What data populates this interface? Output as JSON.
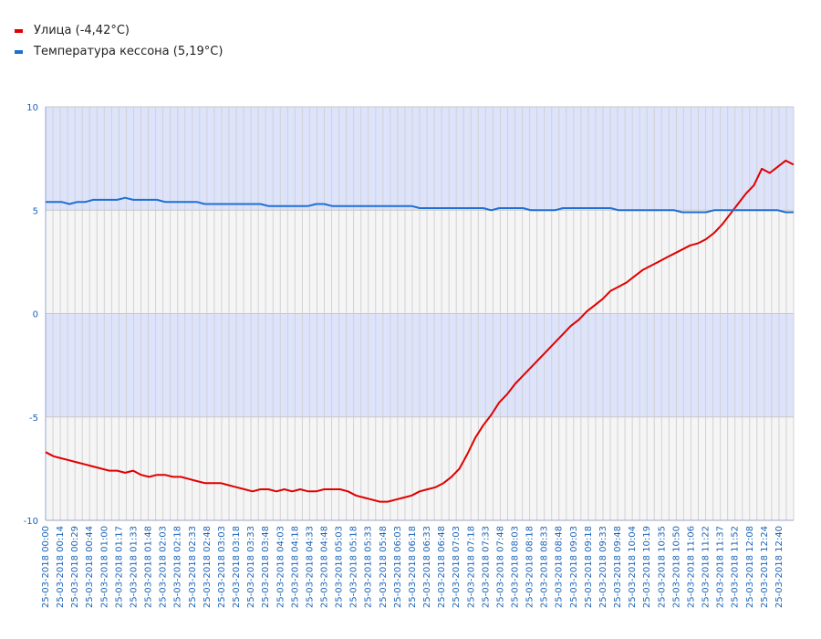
{
  "chart_data": {
    "type": "line",
    "title": "",
    "xlabel": "",
    "ylabel": "",
    "ylim": [
      -10,
      10
    ],
    "yticks": [
      10,
      5,
      0,
      -5,
      -10
    ],
    "band_colors": {
      "blue": "#dce3fb",
      "gray": "#f5f5f5"
    },
    "x_ticks": [
      "25-03-2018 00:00",
      "25-03-2018 00:14",
      "25-03-2018 00:29",
      "25-03-2018 00:44",
      "25-03-2018 01:00",
      "25-03-2018 01:17",
      "25-03-2018 01:33",
      "25-03-2018 01:48",
      "25-03-2018 02:03",
      "25-03-2018 02:18",
      "25-03-2018 02:33",
      "25-03-2018 02:48",
      "25-03-2018 03:03",
      "25-03-2018 03:18",
      "25-03-2018 03:33",
      "25-03-2018 03:48",
      "25-03-2018 04:03",
      "25-03-2018 04:18",
      "25-03-2018 04:33",
      "25-03-2018 04:48",
      "25-03-2018 05:03",
      "25-03-2018 05:18",
      "25-03-2018 05:33",
      "25-03-2018 05:48",
      "25-03-2018 06:03",
      "25-03-2018 06:18",
      "25-03-2018 06:33",
      "25-03-2018 06:48",
      "25-03-2018 07:03",
      "25-03-2018 07:18",
      "25-03-2018 07:33",
      "25-03-2018 07:48",
      "25-03-2018 08:03",
      "25-03-2018 08:18",
      "25-03-2018 08:33",
      "25-03-2018 08:48",
      "25-03-2018 09:03",
      "25-03-2018 09:18",
      "25-03-2018 09:33",
      "25-03-2018 09:48",
      "25-03-2018 10:04",
      "25-03-2018 10:19",
      "25-03-2018 10:35",
      "25-03-2018 10:50",
      "25-03-2018 11:06",
      "25-03-2018 11:22",
      "25-03-2018 11:37",
      "25-03-2018 11:52",
      "25-03-2018 12:08",
      "25-03-2018 12:24",
      "25-03-2018 12:40"
    ],
    "series": [
      {
        "name": "Улица (-4,42°C)",
        "color": "#e00000",
        "values": [
          -6.7,
          -6.9,
          -7.0,
          -7.1,
          -7.2,
          -7.3,
          -7.4,
          -7.5,
          -7.6,
          -7.6,
          -7.7,
          -7.6,
          -7.8,
          -7.9,
          -7.8,
          -7.8,
          -7.9,
          -7.9,
          -8.0,
          -8.1,
          -8.2,
          -8.2,
          -8.2,
          -8.3,
          -8.4,
          -8.5,
          -8.6,
          -8.5,
          -8.5,
          -8.6,
          -8.5,
          -8.6,
          -8.5,
          -8.6,
          -8.6,
          -8.5,
          -8.5,
          -8.5,
          -8.6,
          -8.8,
          -8.9,
          -9.0,
          -9.1,
          -9.1,
          -9.0,
          -8.9,
          -8.8,
          -8.6,
          -8.5,
          -8.4,
          -8.2,
          -7.9,
          -7.5,
          -6.8,
          -6.0,
          -5.4,
          -4.9,
          -4.3,
          -3.9,
          -3.4,
          -3.0,
          -2.6,
          -2.2,
          -1.8,
          -1.4,
          -1.0,
          -0.6,
          -0.3,
          0.1,
          0.4,
          0.7,
          1.1,
          1.3,
          1.5,
          1.8,
          2.1,
          2.3,
          2.5,
          2.7,
          2.9,
          3.1,
          3.3,
          3.4,
          3.6,
          3.9,
          4.3,
          4.8,
          5.3,
          5.8,
          6.2,
          7.0,
          6.8,
          7.1,
          7.4,
          7.2
        ]
      },
      {
        "name": "Температура кессона (5,19°C)",
        "color": "#1e6fd4",
        "values": [
          5.4,
          5.4,
          5.4,
          5.3,
          5.4,
          5.4,
          5.5,
          5.5,
          5.5,
          5.5,
          5.6,
          5.5,
          5.5,
          5.5,
          5.5,
          5.4,
          5.4,
          5.4,
          5.4,
          5.4,
          5.3,
          5.3,
          5.3,
          5.3,
          5.3,
          5.3,
          5.3,
          5.3,
          5.2,
          5.2,
          5.2,
          5.2,
          5.2,
          5.2,
          5.3,
          5.3,
          5.2,
          5.2,
          5.2,
          5.2,
          5.2,
          5.2,
          5.2,
          5.2,
          5.2,
          5.2,
          5.2,
          5.1,
          5.1,
          5.1,
          5.1,
          5.1,
          5.1,
          5.1,
          5.1,
          5.1,
          5.0,
          5.1,
          5.1,
          5.1,
          5.1,
          5.0,
          5.0,
          5.0,
          5.0,
          5.1,
          5.1,
          5.1,
          5.1,
          5.1,
          5.1,
          5.1,
          5.0,
          5.0,
          5.0,
          5.0,
          5.0,
          5.0,
          5.0,
          5.0,
          4.9,
          4.9,
          4.9,
          4.9,
          5.0,
          5.0,
          5.0,
          5.0,
          5.0,
          5.0,
          5.0,
          5.0,
          5.0,
          4.9,
          4.9
        ]
      }
    ]
  }
}
